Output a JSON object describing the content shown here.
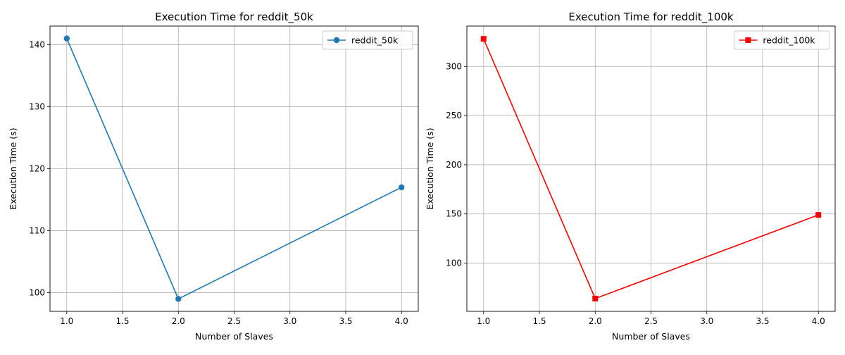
{
  "chart_data": [
    {
      "type": "line",
      "title": "Execution Time for reddit_50k",
      "xlabel": "Number of Slaves",
      "ylabel": "Execution Time (s)",
      "x": [
        1,
        2,
        4
      ],
      "series": [
        {
          "name": "reddit_50k",
          "values": [
            141,
            99,
            117
          ],
          "color": "#1f77b4",
          "marker": "circle"
        }
      ],
      "xlim": [
        0.85,
        4.15
      ],
      "ylim": [
        97,
        143
      ],
      "xticks": [
        "1.0",
        "1.5",
        "2.0",
        "2.5",
        "3.0",
        "3.5",
        "4.0"
      ],
      "xtick_values": [
        1.0,
        1.5,
        2.0,
        2.5,
        3.0,
        3.5,
        4.0
      ],
      "yticks": [
        "100",
        "110",
        "120",
        "130",
        "140"
      ],
      "ytick_values": [
        100,
        110,
        120,
        130,
        140
      ],
      "grid": true,
      "legend": "top-right"
    },
    {
      "type": "line",
      "title": "Execution Time for reddit_100k",
      "xlabel": "Number of Slaves",
      "ylabel": "Execution Time (s)",
      "x": [
        1,
        2,
        4
      ],
      "series": [
        {
          "name": "reddit_100k",
          "values": [
            328,
            64,
            149
          ],
          "color": "#ff0000",
          "marker": "square"
        }
      ],
      "xlim": [
        0.85,
        4.15
      ],
      "ylim": [
        51,
        341
      ],
      "xticks": [
        "1.0",
        "1.5",
        "2.0",
        "2.5",
        "3.0",
        "3.5",
        "4.0"
      ],
      "xtick_values": [
        1.0,
        1.5,
        2.0,
        2.5,
        3.0,
        3.5,
        4.0
      ],
      "yticks": [
        "100",
        "150",
        "200",
        "250",
        "300"
      ],
      "ytick_values": [
        100,
        150,
        200,
        250,
        300
      ],
      "grid": true,
      "legend": "top-right"
    }
  ]
}
